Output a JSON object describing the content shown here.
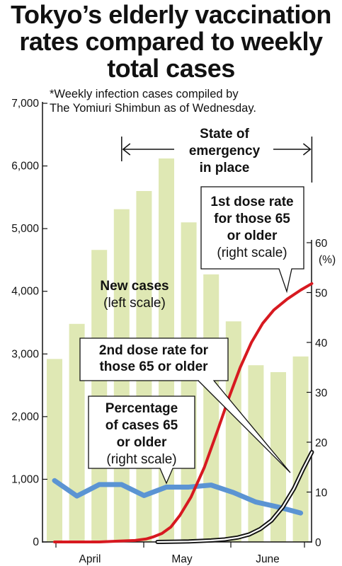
{
  "title_lines": [
    "Tokyo’s elderly vaccination",
    "rates compared to weekly",
    "total cases"
  ],
  "note_lines": [
    "*Weekly infection cases compiled by",
    "The Yomiuri Shimbun as of Wednesday."
  ],
  "colors": {
    "bars": "#dfe8b4",
    "percentage_line": "#5b94d3",
    "first_dose_line": "#d71920",
    "second_dose_line": "#111111",
    "axis": "#111111"
  },
  "chart_data": {
    "type": "bar",
    "title": "Tokyo’s elderly vaccination rates compared to weekly total cases",
    "ylim_left": [
      0,
      7000
    ],
    "yticks_left": [
      "7,000",
      "6,000",
      "5,000",
      "4,000",
      "3,000",
      "2,000",
      "1,000",
      "0"
    ],
    "ylim_right": [
      0,
      60
    ],
    "yticks_right": [
      "60",
      "50",
      "40",
      "30",
      "20",
      "10",
      "0"
    ],
    "right_unit": "(%)",
    "x_labels": [
      "April",
      "May",
      "June"
    ],
    "weekly_cases": [
      2920,
      3480,
      4660,
      5310,
      5600,
      6120,
      5100,
      4270,
      3520,
      2820,
      2710,
      2960
    ],
    "series": [
      {
        "name": "Percentage of cases 65 or older",
        "axis": "right",
        "values": [
          12.3,
          9.2,
          11.5,
          11.5,
          9.3,
          11,
          11,
          11.4,
          9.9,
          8,
          7,
          5.8
        ]
      },
      {
        "name": "1st dose rate for those 65 or older",
        "axis": "right",
        "x": [
          0,
          2,
          3,
          3.6,
          4.1,
          4.4,
          4.8,
          5.2,
          5.6,
          6.1,
          6.7,
          7.3,
          7.8,
          8.3,
          8.8,
          9.3,
          9.8,
          10.4,
          11,
          11.5
        ],
        "values": [
          0,
          0,
          0.2,
          0.3,
          0.6,
          1,
          1.7,
          3,
          5.3,
          9,
          15,
          22.5,
          29,
          35,
          40,
          43.8,
          46.5,
          48.7,
          50.5,
          51.8
        ]
      },
      {
        "name": "2nd dose rate for those 65 or older",
        "axis": "right",
        "x": [
          4.6,
          6,
          7,
          7.6,
          8.2,
          8.7,
          9.2,
          9.7,
          10.2,
          10.7,
          11.1,
          11.5
        ],
        "values": [
          0,
          0.1,
          0.3,
          0.5,
          0.9,
          1.5,
          2.6,
          4.3,
          7,
          10.7,
          14.5,
          18
        ]
      }
    ],
    "emergency_period_weeks": [
      3,
      11.5
    ],
    "annotations": {
      "emergency": [
        "State of",
        "emergency",
        "in place"
      ],
      "new_cases": [
        "New cases",
        "(left scale)"
      ],
      "first_dose": [
        "1st dose rate",
        "for those 65",
        "or older",
        "(right scale)"
      ],
      "second_dose": [
        "2nd dose rate for",
        "those 65 or older"
      ],
      "percentage": [
        "Percentage",
        "of cases 65",
        "or older",
        "(right scale)"
      ]
    }
  }
}
